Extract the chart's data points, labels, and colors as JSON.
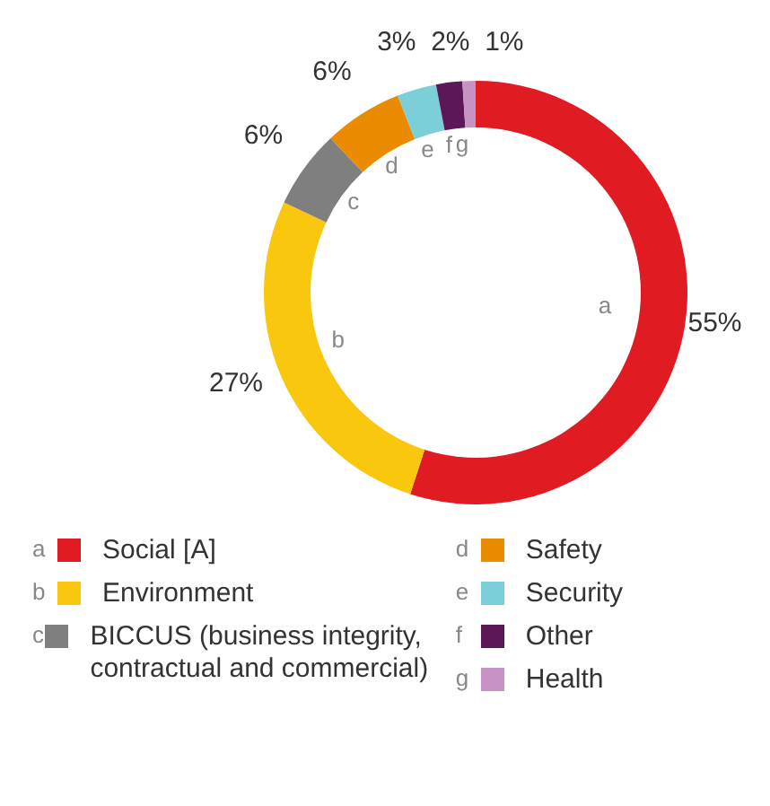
{
  "chart_data": {
    "type": "donut",
    "categories": [
      "Social [A]",
      "Environment",
      "BICCUS (business integrity, contractual and commercial)",
      "Safety",
      "Security",
      "Other",
      "Health"
    ],
    "values": [
      55,
      27,
      6,
      6,
      3,
      2,
      1
    ],
    "colors": [
      "#e11b22",
      "#f9c80e",
      "#7f7f7f",
      "#eb8c00",
      "#7ccfd9",
      "#5b1758",
      "#c792c4"
    ],
    "value_labels": [
      "55%",
      "27%",
      "6%",
      "6%",
      "3%",
      "2%",
      "1%"
    ],
    "annotations": [
      "a",
      "b",
      "c",
      "d",
      "e",
      "f",
      "g"
    ],
    "legend": "bottom"
  }
}
